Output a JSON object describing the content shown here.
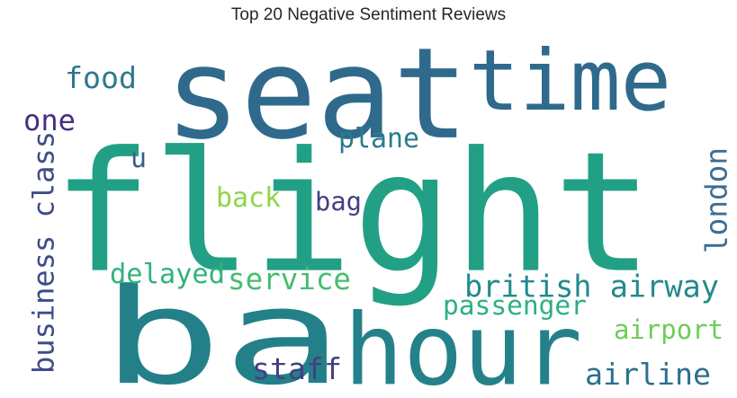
{
  "chart_data": {
    "type": "wordcloud",
    "title": "Top 20 Negative Sentiment Reviews",
    "words": [
      {
        "text": "flight",
        "color": "#22a085"
      },
      {
        "text": "seat",
        "color": "#2f6a8c"
      },
      {
        "text": "time",
        "color": "#2f6a8c"
      },
      {
        "text": "ba",
        "color": "#238089"
      },
      {
        "text": "hour",
        "color": "#24818a"
      },
      {
        "text": "british airway",
        "color": "#238a8d"
      },
      {
        "text": "service",
        "color": "#44bd6e"
      },
      {
        "text": "passenger",
        "color": "#2db07f"
      },
      {
        "text": "london",
        "color": "#3b6e94"
      },
      {
        "text": "business class",
        "color": "#3f4c8a"
      },
      {
        "text": "food",
        "color": "#2d7890"
      },
      {
        "text": "one",
        "color": "#472f7d"
      },
      {
        "text": "plane",
        "color": "#2b7b8e"
      },
      {
        "text": "u",
        "color": "#33608d"
      },
      {
        "text": "back",
        "color": "#8ed64a"
      },
      {
        "text": "bag",
        "color": "#433e85"
      },
      {
        "text": "delayed",
        "color": "#2fb47c"
      },
      {
        "text": "airport",
        "color": "#6ccd5a"
      },
      {
        "text": "staff",
        "color": "#424086"
      },
      {
        "text": "airline",
        "color": "#2d6f8e"
      }
    ]
  }
}
